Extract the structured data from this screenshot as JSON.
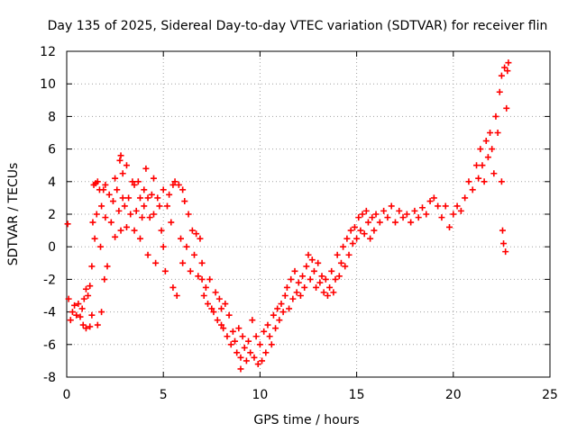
{
  "chart_data": {
    "type": "scatter",
    "title": "Day 135 of 2025, Sidereal Day-to-day VTEC variation (SDTVAR) for receiver flin",
    "xlabel": "GPS time / hours",
    "ylabel": "SDTVAR / TECUs",
    "xlim": [
      0,
      25
    ],
    "ylim": [
      -8,
      12
    ],
    "xticks": [
      "0",
      "5",
      "10",
      "15",
      "20",
      "25"
    ],
    "yticks": [
      "-8",
      "-6",
      "-4",
      "-2",
      "0",
      "2",
      "4",
      "6",
      "8",
      "10",
      "12"
    ],
    "grid": true,
    "marker": "plus",
    "color": "#ff0000",
    "series": [
      {
        "name": "SDTVAR",
        "points": [
          [
            0.05,
            1.4
          ],
          [
            0.1,
            -3.2
          ],
          [
            0.2,
            -4.5
          ],
          [
            0.3,
            -4.0
          ],
          [
            0.4,
            -3.6
          ],
          [
            0.5,
            -4.2
          ],
          [
            0.6,
            -3.5
          ],
          [
            0.7,
            -4.3
          ],
          [
            0.8,
            -3.8
          ],
          [
            0.85,
            -4.8
          ],
          [
            0.9,
            -3.2
          ],
          [
            1.0,
            -2.6
          ],
          [
            1.0,
            -5.0
          ],
          [
            1.1,
            -3.0
          ],
          [
            1.2,
            -2.4
          ],
          [
            1.2,
            -4.9
          ],
          [
            1.3,
            -1.2
          ],
          [
            1.3,
            -4.2
          ],
          [
            1.35,
            1.5
          ],
          [
            1.4,
            3.8
          ],
          [
            1.45,
            0.5
          ],
          [
            1.5,
            3.9
          ],
          [
            1.55,
            2.0
          ],
          [
            1.6,
            4.0
          ],
          [
            1.6,
            -4.8
          ],
          [
            1.7,
            3.5
          ],
          [
            1.75,
            0.0
          ],
          [
            1.8,
            2.5
          ],
          [
            1.8,
            -4.0
          ],
          [
            1.9,
            3.5
          ],
          [
            1.95,
            -2.0
          ],
          [
            2.0,
            1.8
          ],
          [
            2.0,
            3.8
          ],
          [
            2.1,
            -1.2
          ],
          [
            2.2,
            3.2
          ],
          [
            2.3,
            1.5
          ],
          [
            2.4,
            2.8
          ],
          [
            2.5,
            0.6
          ],
          [
            2.5,
            4.2
          ],
          [
            2.6,
            3.5
          ],
          [
            2.7,
            2.2
          ],
          [
            2.75,
            5.3
          ],
          [
            2.8,
            1.0
          ],
          [
            2.8,
            5.6
          ],
          [
            2.9,
            4.5
          ],
          [
            2.9,
            3.0
          ],
          [
            3.0,
            2.5
          ],
          [
            3.1,
            5.0
          ],
          [
            3.1,
            1.2
          ],
          [
            3.2,
            3.0
          ],
          [
            3.3,
            2.0
          ],
          [
            3.4,
            4.0
          ],
          [
            3.5,
            3.8
          ],
          [
            3.5,
            1.0
          ],
          [
            3.6,
            2.2
          ],
          [
            3.7,
            4.0
          ],
          [
            3.8,
            0.5
          ],
          [
            3.8,
            3.0
          ],
          [
            3.9,
            1.8
          ],
          [
            4.0,
            3.5
          ],
          [
            4.0,
            2.5
          ],
          [
            4.1,
            4.8
          ],
          [
            4.2,
            -0.5
          ],
          [
            4.2,
            3.0
          ],
          [
            4.3,
            1.8
          ],
          [
            4.4,
            3.2
          ],
          [
            4.5,
            4.2
          ],
          [
            4.5,
            2.0
          ],
          [
            4.6,
            -1.0
          ],
          [
            4.7,
            3.0
          ],
          [
            4.8,
            2.5
          ],
          [
            4.9,
            1.0
          ],
          [
            5.0,
            3.5
          ],
          [
            5.0,
            0.0
          ],
          [
            5.1,
            -1.5
          ],
          [
            5.2,
            2.5
          ],
          [
            5.3,
            3.2
          ],
          [
            5.4,
            1.5
          ],
          [
            5.5,
            3.8
          ],
          [
            5.5,
            -2.5
          ],
          [
            5.6,
            4.0
          ],
          [
            5.7,
            -3.0
          ],
          [
            5.8,
            3.8
          ],
          [
            5.9,
            0.5
          ],
          [
            6.0,
            3.5
          ],
          [
            6.0,
            -1.0
          ],
          [
            6.1,
            2.8
          ],
          [
            6.2,
            0.0
          ],
          [
            6.3,
            2.0
          ],
          [
            6.4,
            -1.5
          ],
          [
            6.5,
            1.0
          ],
          [
            6.6,
            -0.5
          ],
          [
            6.7,
            0.8
          ],
          [
            6.8,
            -1.8
          ],
          [
            6.9,
            0.5
          ],
          [
            7.0,
            -2.0
          ],
          [
            7.0,
            -1.0
          ],
          [
            7.1,
            -3.0
          ],
          [
            7.2,
            -2.5
          ],
          [
            7.3,
            -3.5
          ],
          [
            7.4,
            -2.0
          ],
          [
            7.5,
            -3.8
          ],
          [
            7.6,
            -4.0
          ],
          [
            7.7,
            -2.8
          ],
          [
            7.8,
            -4.5
          ],
          [
            7.9,
            -3.2
          ],
          [
            8.0,
            -3.8
          ],
          [
            8.0,
            -4.8
          ],
          [
            8.1,
            -5.0
          ],
          [
            8.2,
            -3.5
          ],
          [
            8.3,
            -5.5
          ],
          [
            8.4,
            -4.2
          ],
          [
            8.5,
            -6.0
          ],
          [
            8.6,
            -5.2
          ],
          [
            8.7,
            -5.8
          ],
          [
            8.8,
            -6.5
          ],
          [
            8.9,
            -5.0
          ],
          [
            9.0,
            -6.8
          ],
          [
            9.0,
            -7.5
          ],
          [
            9.1,
            -5.5
          ],
          [
            9.2,
            -6.2
          ],
          [
            9.3,
            -7.0
          ],
          [
            9.4,
            -5.8
          ],
          [
            9.5,
            -6.5
          ],
          [
            9.6,
            -4.5
          ],
          [
            9.7,
            -6.8
          ],
          [
            9.8,
            -5.5
          ],
          [
            9.9,
            -7.2
          ],
          [
            10.0,
            -6.0
          ],
          [
            10.1,
            -7.0
          ],
          [
            10.2,
            -5.2
          ],
          [
            10.3,
            -6.5
          ],
          [
            10.4,
            -4.8
          ],
          [
            10.5,
            -5.5
          ],
          [
            10.6,
            -6.0
          ],
          [
            10.7,
            -4.2
          ],
          [
            10.8,
            -5.0
          ],
          [
            10.9,
            -3.8
          ],
          [
            11.0,
            -4.5
          ],
          [
            11.1,
            -3.5
          ],
          [
            11.2,
            -4.0
          ],
          [
            11.3,
            -3.0
          ],
          [
            11.4,
            -2.5
          ],
          [
            11.5,
            -3.8
          ],
          [
            11.6,
            -2.0
          ],
          [
            11.7,
            -3.2
          ],
          [
            11.8,
            -1.5
          ],
          [
            11.9,
            -2.8
          ],
          [
            12.0,
            -2.2
          ],
          [
            12.1,
            -3.0
          ],
          [
            12.2,
            -1.8
          ],
          [
            12.3,
            -2.5
          ],
          [
            12.4,
            -1.2
          ],
          [
            12.5,
            -0.5
          ],
          [
            12.6,
            -2.0
          ],
          [
            12.7,
            -0.8
          ],
          [
            12.8,
            -1.5
          ],
          [
            12.9,
            -2.5
          ],
          [
            13.0,
            -1.0
          ],
          [
            13.1,
            -2.2
          ],
          [
            13.2,
            -1.8
          ],
          [
            13.3,
            -2.8
          ],
          [
            13.4,
            -2.0
          ],
          [
            13.5,
            -3.0
          ],
          [
            13.6,
            -2.5
          ],
          [
            13.7,
            -1.5
          ],
          [
            13.8,
            -2.8
          ],
          [
            13.9,
            -2.0
          ],
          [
            14.0,
            -0.5
          ],
          [
            14.1,
            -1.8
          ],
          [
            14.2,
            -1.0
          ],
          [
            14.3,
            0.0
          ],
          [
            14.4,
            -1.2
          ],
          [
            14.5,
            0.5
          ],
          [
            14.6,
            -0.5
          ],
          [
            14.7,
            1.0
          ],
          [
            14.8,
            0.2
          ],
          [
            14.9,
            1.2
          ],
          [
            15.0,
            0.5
          ],
          [
            15.1,
            1.8
          ],
          [
            15.2,
            1.0
          ],
          [
            15.3,
            2.0
          ],
          [
            15.4,
            0.8
          ],
          [
            15.5,
            2.2
          ],
          [
            15.6,
            1.5
          ],
          [
            15.7,
            0.5
          ],
          [
            15.8,
            1.8
          ],
          [
            15.9,
            1.0
          ],
          [
            16.0,
            2.0
          ],
          [
            16.2,
            1.5
          ],
          [
            16.4,
            2.2
          ],
          [
            16.6,
            1.8
          ],
          [
            16.8,
            2.5
          ],
          [
            17.0,
            1.5
          ],
          [
            17.2,
            2.2
          ],
          [
            17.4,
            1.8
          ],
          [
            17.6,
            2.0
          ],
          [
            17.8,
            1.5
          ],
          [
            18.0,
            2.2
          ],
          [
            18.2,
            1.8
          ],
          [
            18.4,
            2.4
          ],
          [
            18.6,
            2.0
          ],
          [
            18.8,
            2.8
          ],
          [
            19.0,
            3.0
          ],
          [
            19.2,
            2.5
          ],
          [
            19.4,
            1.8
          ],
          [
            19.6,
            2.5
          ],
          [
            19.8,
            1.2
          ],
          [
            20.0,
            2.0
          ],
          [
            20.2,
            2.5
          ],
          [
            20.4,
            2.2
          ],
          [
            20.6,
            3.0
          ],
          [
            20.8,
            4.0
          ],
          [
            21.0,
            3.5
          ],
          [
            21.2,
            5.0
          ],
          [
            21.3,
            4.2
          ],
          [
            21.4,
            6.0
          ],
          [
            21.5,
            5.0
          ],
          [
            21.6,
            4.0
          ],
          [
            21.7,
            6.5
          ],
          [
            21.8,
            5.5
          ],
          [
            21.9,
            7.0
          ],
          [
            22.0,
            6.0
          ],
          [
            22.1,
            4.5
          ],
          [
            22.2,
            8.0
          ],
          [
            22.3,
            7.0
          ],
          [
            22.4,
            9.5
          ],
          [
            22.5,
            10.5
          ],
          [
            22.5,
            4.0
          ],
          [
            22.55,
            1.0
          ],
          [
            22.6,
            0.2
          ],
          [
            22.65,
            11.0
          ],
          [
            22.7,
            -0.3
          ],
          [
            22.75,
            8.5
          ],
          [
            22.8,
            10.8
          ],
          [
            22.85,
            11.3
          ]
        ]
      }
    ]
  }
}
